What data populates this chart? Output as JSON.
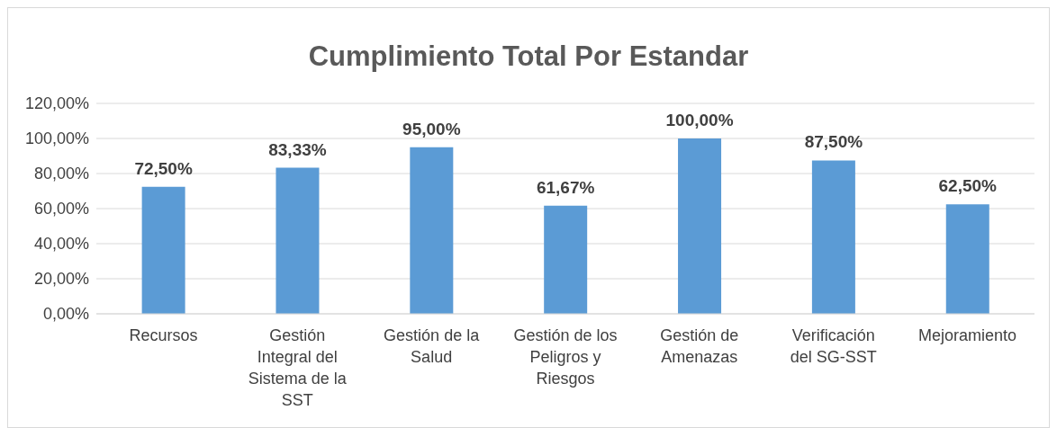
{
  "chart_data": {
    "type": "bar",
    "title": "Cumplimiento Total Por Estandar",
    "categories": [
      "Recursos",
      "Gestión Integral del Sistema de la SST",
      "Gestión de la Salud",
      "Gestión de los Peligros y Riesgos",
      "Gestión de Amenazas",
      "Verificación del SG-SST",
      "Mejoramiento"
    ],
    "values": [
      72.5,
      83.33,
      95,
      61.67,
      100,
      87.5,
      62.5
    ],
    "value_labels": [
      "72,50%",
      "83,33%",
      "95,00%",
      "61,67%",
      "100,00%",
      "87,50%",
      "62,50%"
    ],
    "color": "#5b9bd5",
    "ylim": [
      0,
      120
    ],
    "yticks": [
      {
        "value": 0,
        "label": "0,00%"
      },
      {
        "value": 20,
        "label": "20,00%"
      },
      {
        "value": 40,
        "label": "40,00%"
      },
      {
        "value": 60,
        "label": "60,00%"
      },
      {
        "value": 80,
        "label": "80,00%"
      },
      {
        "value": 100,
        "label": "100,00%"
      },
      {
        "value": 120,
        "label": "120,00%"
      }
    ],
    "grid": "y"
  }
}
